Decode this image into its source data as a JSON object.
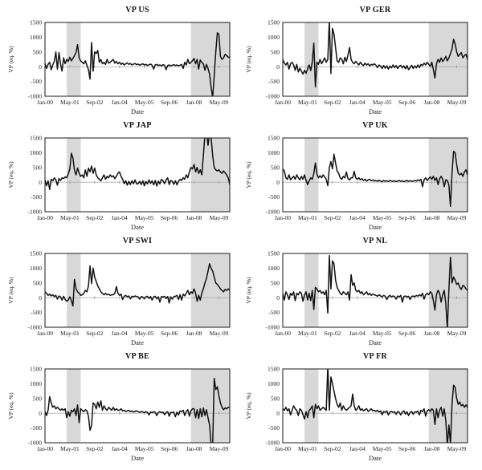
{
  "figure": {
    "ylabel": "VP (eq. %)",
    "xlabel": "Date",
    "ylim": [
      -1000,
      1500
    ],
    "y_ticks": [
      1500,
      1000,
      500,
      0,
      -500,
      -1000
    ],
    "x_tick_labels": [
      "Jan-00",
      "May-01",
      "Sep-02",
      "Jan-04",
      "May-05",
      "Sep-06",
      "Jan-08",
      "May-09"
    ],
    "x_tick_months": [
      0,
      16,
      32,
      48,
      64,
      80,
      96,
      112
    ],
    "x_months": 120,
    "x_start": "Jan-00",
    "x_end": "Dec-09",
    "shaded_bands_months": [
      [
        14,
        23
      ],
      [
        94,
        119
      ]
    ],
    "colors": {
      "line": "#111111",
      "band": "#d8d8d8",
      "zero_line": "#b0b0b0",
      "frame": "#1a1a1a",
      "text": "#222222",
      "background": "#ffffff"
    }
  },
  "chart_data": [
    {
      "type": "line",
      "title": "VP US",
      "xlabel": "Date",
      "ylabel": "VP (eq. %)",
      "ylim": [
        -1000,
        1500
      ],
      "frequency": "monthly",
      "values": [
        120,
        -60,
        80,
        150,
        -100,
        60,
        180,
        500,
        -80,
        480,
        100,
        -150,
        300,
        100,
        250,
        180,
        320,
        200,
        280,
        380,
        480,
        750,
        300,
        200,
        150,
        100,
        200,
        50,
        -100,
        -420,
        820,
        -150,
        500,
        450,
        550,
        150,
        250,
        100,
        150,
        80,
        250,
        120,
        150,
        200,
        250,
        120,
        180,
        100,
        150,
        80,
        120,
        60,
        100,
        130,
        80,
        110,
        60,
        90,
        110,
        70,
        90,
        50,
        80,
        100,
        60,
        80,
        40,
        70,
        90,
        50,
        -80,
        60,
        80,
        40,
        60,
        30,
        70,
        50,
        -100,
        40,
        60,
        30,
        50,
        70,
        40,
        60,
        30,
        50,
        80,
        -60,
        150,
        60,
        250,
        100,
        150,
        200,
        280,
        100,
        250,
        -80,
        230,
        150,
        100,
        -120,
        80,
        -60,
        -250,
        -700,
        -1050,
        -300,
        500,
        1150,
        1100,
        350,
        250,
        300,
        420,
        380,
        320,
        330
      ]
    },
    {
      "type": "line",
      "title": "VP GER",
      "xlabel": "Date",
      "ylabel": "VP (eq. %)",
      "ylim": [
        -1000,
        1500
      ],
      "frequency": "monthly",
      "values": [
        250,
        120,
        60,
        150,
        -80,
        100,
        150,
        60,
        -120,
        80,
        -180,
        -50,
        -150,
        -250,
        -120,
        -220,
        -80,
        60,
        -130,
        160,
        800,
        -680,
        150,
        80,
        250,
        100,
        200,
        300,
        150,
        250,
        1550,
        -230,
        1300,
        1100,
        650,
        200,
        150,
        300,
        250,
        100,
        320,
        180,
        400,
        650,
        250,
        150,
        100,
        180,
        120,
        60,
        150,
        80,
        40,
        120,
        60,
        100,
        30,
        80,
        60,
        100,
        50,
        -30,
        60,
        20,
        -60,
        40,
        -50,
        30,
        -80,
        20,
        -40,
        60,
        -30,
        40,
        -60,
        20,
        50,
        -40,
        30,
        -70,
        40,
        -100,
        -30,
        50,
        -60,
        30,
        -40,
        60,
        -30,
        80,
        40,
        120,
        60,
        150,
        80,
        20,
        150,
        -100,
        -380,
        100,
        250,
        150,
        300,
        180,
        250,
        350,
        200,
        300,
        450,
        600,
        930,
        780,
        500,
        350,
        420,
        480,
        300,
        380,
        420,
        250
      ]
    },
    {
      "type": "line",
      "title": "VP JAP",
      "xlabel": "Date",
      "ylabel": "VP (eq. %)",
      "ylim": [
        -1000,
        1500
      ],
      "frequency": "monthly",
      "values": [
        80,
        -120,
        50,
        -250,
        100,
        50,
        150,
        80,
        -100,
        120,
        60,
        150,
        120,
        180,
        150,
        280,
        450,
        980,
        820,
        400,
        250,
        480,
        300,
        200,
        250,
        150,
        420,
        200,
        480,
        350,
        550,
        300,
        480,
        250,
        150,
        100,
        50,
        150,
        250,
        100,
        200,
        150,
        250,
        180,
        220,
        120,
        200,
        300,
        350,
        200,
        100,
        -50,
        50,
        -100,
        30,
        -80,
        50,
        -50,
        80,
        -60,
        -50,
        30,
        -80,
        50,
        -120,
        30,
        -60,
        80,
        -40,
        50,
        -90,
        60,
        -130,
        40,
        -60,
        100,
        50,
        -50,
        80,
        150,
        -80,
        60,
        30,
        -70,
        50,
        -90,
        30,
        100,
        60,
        150,
        100,
        250,
        150,
        350,
        500,
        450,
        600,
        350,
        500,
        300,
        420,
        250,
        900,
        1600,
        1700,
        1250,
        1650,
        1500,
        900,
        500,
        420,
        380,
        420,
        350,
        300,
        380,
        320,
        250,
        150,
        -80
      ]
    },
    {
      "type": "line",
      "title": "VP UK",
      "xlabel": "Date",
      "ylabel": "VP (eq. %)",
      "ylim": [
        -1000,
        1500
      ],
      "frequency": "monthly",
      "values": [
        450,
        380,
        150,
        100,
        250,
        80,
        150,
        200,
        100,
        250,
        150,
        80,
        200,
        100,
        250,
        60,
        -80,
        50,
        150,
        100,
        300,
        650,
        280,
        150,
        220,
        150,
        250,
        180,
        100,
        -120,
        500,
        700,
        450,
        950,
        650,
        380,
        300,
        150,
        100,
        200,
        150,
        350,
        120,
        80,
        150,
        150,
        370,
        150,
        100,
        150,
        80,
        120,
        60,
        100,
        40,
        80,
        100,
        50,
        80,
        40,
        60,
        30,
        70,
        40,
        20,
        60,
        30,
        50,
        20,
        60,
        40,
        30,
        50,
        20,
        40,
        60,
        30,
        50,
        20,
        40,
        60,
        30,
        50,
        40,
        30,
        60,
        40,
        80,
        50,
        100,
        -150,
        80,
        150,
        60,
        120,
        180,
        100,
        200,
        60,
        150,
        -80,
        120,
        200,
        100,
        -150,
        80,
        60,
        -100,
        -820,
        300,
        1050,
        1000,
        600,
        300,
        250,
        300,
        200,
        350,
        420,
        250
      ]
    },
    {
      "type": "line",
      "title": "VP SWI",
      "xlabel": "Date",
      "ylabel": "VP (eq. %)",
      "ylim": [
        -1000,
        1500
      ],
      "frequency": "monthly",
      "values": [
        200,
        150,
        80,
        120,
        60,
        100,
        40,
        80,
        -50,
        60,
        30,
        -80,
        50,
        -60,
        -120,
        -80,
        30,
        -100,
        -280,
        620,
        300,
        200,
        150,
        80,
        100,
        150,
        250,
        200,
        400,
        1080,
        480,
        1000,
        700,
        550,
        400,
        300,
        200,
        150,
        100,
        150,
        100,
        120,
        80,
        100,
        100,
        150,
        380,
        150,
        80,
        120,
        -60,
        50,
        80,
        30,
        60,
        -40,
        50,
        30,
        60,
        40,
        30,
        -50,
        40,
        20,
        -40,
        30,
        50,
        -30,
        40,
        -80,
        30,
        50,
        -40,
        30,
        -150,
        40,
        20,
        50,
        -30,
        40,
        -180,
        30,
        -50,
        40,
        50,
        80,
        -60,
        100,
        -80,
        120,
        60,
        150,
        250,
        100,
        200,
        150,
        300,
        150,
        -120,
        80,
        -80,
        150,
        300,
        500,
        650,
        900,
        1150,
        1000,
        900,
        700,
        500,
        450,
        380,
        300,
        250,
        200,
        280,
        250,
        300,
        250
      ]
    },
    {
      "type": "line",
      "title": "VP NL",
      "xlabel": "Date",
      "ylabel": "VP (eq. %)",
      "ylim": [
        -1000,
        1500
      ],
      "frequency": "monthly",
      "values": [
        150,
        -80,
        200,
        100,
        -60,
        150,
        80,
        200,
        -100,
        150,
        100,
        200,
        150,
        -120,
        100,
        200,
        -80,
        150,
        -100,
        250,
        -400,
        350,
        300,
        200,
        250,
        150,
        200,
        100,
        250,
        -520,
        1430,
        300,
        1250,
        1150,
        600,
        350,
        250,
        150,
        100,
        200,
        150,
        100,
        200,
        -80,
        780,
        420,
        500,
        250,
        200,
        250,
        150,
        200,
        100,
        150,
        200,
        100,
        150,
        80,
        120,
        100,
        80,
        50,
        100,
        60,
        30,
        80,
        50,
        -60,
        40,
        80,
        30,
        60,
        40,
        -50,
        60,
        30,
        80,
        -150,
        40,
        60,
        30,
        50,
        -60,
        40,
        60,
        30,
        80,
        50,
        100,
        60,
        150,
        -50,
        100,
        150,
        100,
        200,
        150,
        -100,
        -420,
        100,
        250,
        150,
        -150,
        100,
        250,
        -200,
        -1050,
        300,
        1370,
        500,
        700,
        600,
        450,
        500,
        350,
        280,
        420,
        380,
        300,
        250
      ]
    },
    {
      "type": "line",
      "title": "VP BE",
      "xlabel": "Date",
      "ylabel": "VP (eq. %)",
      "ylim": [
        -1000,
        1500
      ],
      "frequency": "monthly",
      "values": [
        50,
        -80,
        100,
        560,
        350,
        200,
        250,
        150,
        200,
        150,
        100,
        150,
        100,
        150,
        -150,
        50,
        -100,
        100,
        50,
        150,
        -80,
        280,
        -320,
        150,
        100,
        50,
        120,
        80,
        -100,
        -580,
        -420,
        350,
        300,
        150,
        380,
        200,
        420,
        100,
        250,
        150,
        100,
        200,
        150,
        100,
        200,
        100,
        150,
        100,
        100,
        150,
        80,
        100,
        60,
        80,
        100,
        50,
        80,
        40,
        60,
        80,
        50,
        30,
        60,
        40,
        20,
        50,
        30,
        -60,
        40,
        20,
        50,
        30,
        -80,
        30,
        50,
        20,
        40,
        -50,
        30,
        50,
        -100,
        30,
        20,
        40,
        -120,
        40,
        -60,
        80,
        50,
        100,
        -80,
        60,
        120,
        -100,
        80,
        150,
        150,
        -150,
        120,
        -180,
        150,
        -120,
        180,
        -80,
        120,
        -150,
        -400,
        -1050,
        -1050,
        1180,
        800,
        900,
        600,
        350,
        200,
        120,
        180,
        150,
        200,
        180
      ]
    },
    {
      "type": "line",
      "title": "VP FR",
      "xlabel": "Date",
      "ylabel": "VP (eq. %)",
      "ylim": [
        -1000,
        1500
      ],
      "frequency": "monthly",
      "values": [
        150,
        100,
        200,
        80,
        150,
        -60,
        100,
        250,
        150,
        100,
        -80,
        150,
        100,
        -50,
        -200,
        50,
        -150,
        100,
        150,
        250,
        -150,
        300,
        150,
        250,
        100,
        150,
        200,
        150,
        100,
        1600,
        100,
        1230,
        1000,
        750,
        500,
        300,
        200,
        350,
        100,
        250,
        150,
        100,
        150,
        200,
        250,
        650,
        250,
        100,
        150,
        250,
        100,
        150,
        80,
        120,
        150,
        60,
        100,
        150,
        80,
        100,
        60,
        100,
        40,
        80,
        -50,
        60,
        30,
        80,
        -60,
        40,
        60,
        30,
        50,
        -40,
        60,
        30,
        -60,
        40,
        80,
        -30,
        50,
        -80,
        30,
        60,
        -40,
        50,
        30,
        80,
        -60,
        100,
        50,
        150,
        -100,
        80,
        120,
        60,
        150,
        100,
        -380,
        150,
        -150,
        100,
        200,
        -100,
        150,
        -250,
        -1100,
        -400,
        -1050,
        300,
        950,
        880,
        500,
        300,
        380,
        250,
        300,
        200,
        280,
        200
      ]
    }
  ]
}
